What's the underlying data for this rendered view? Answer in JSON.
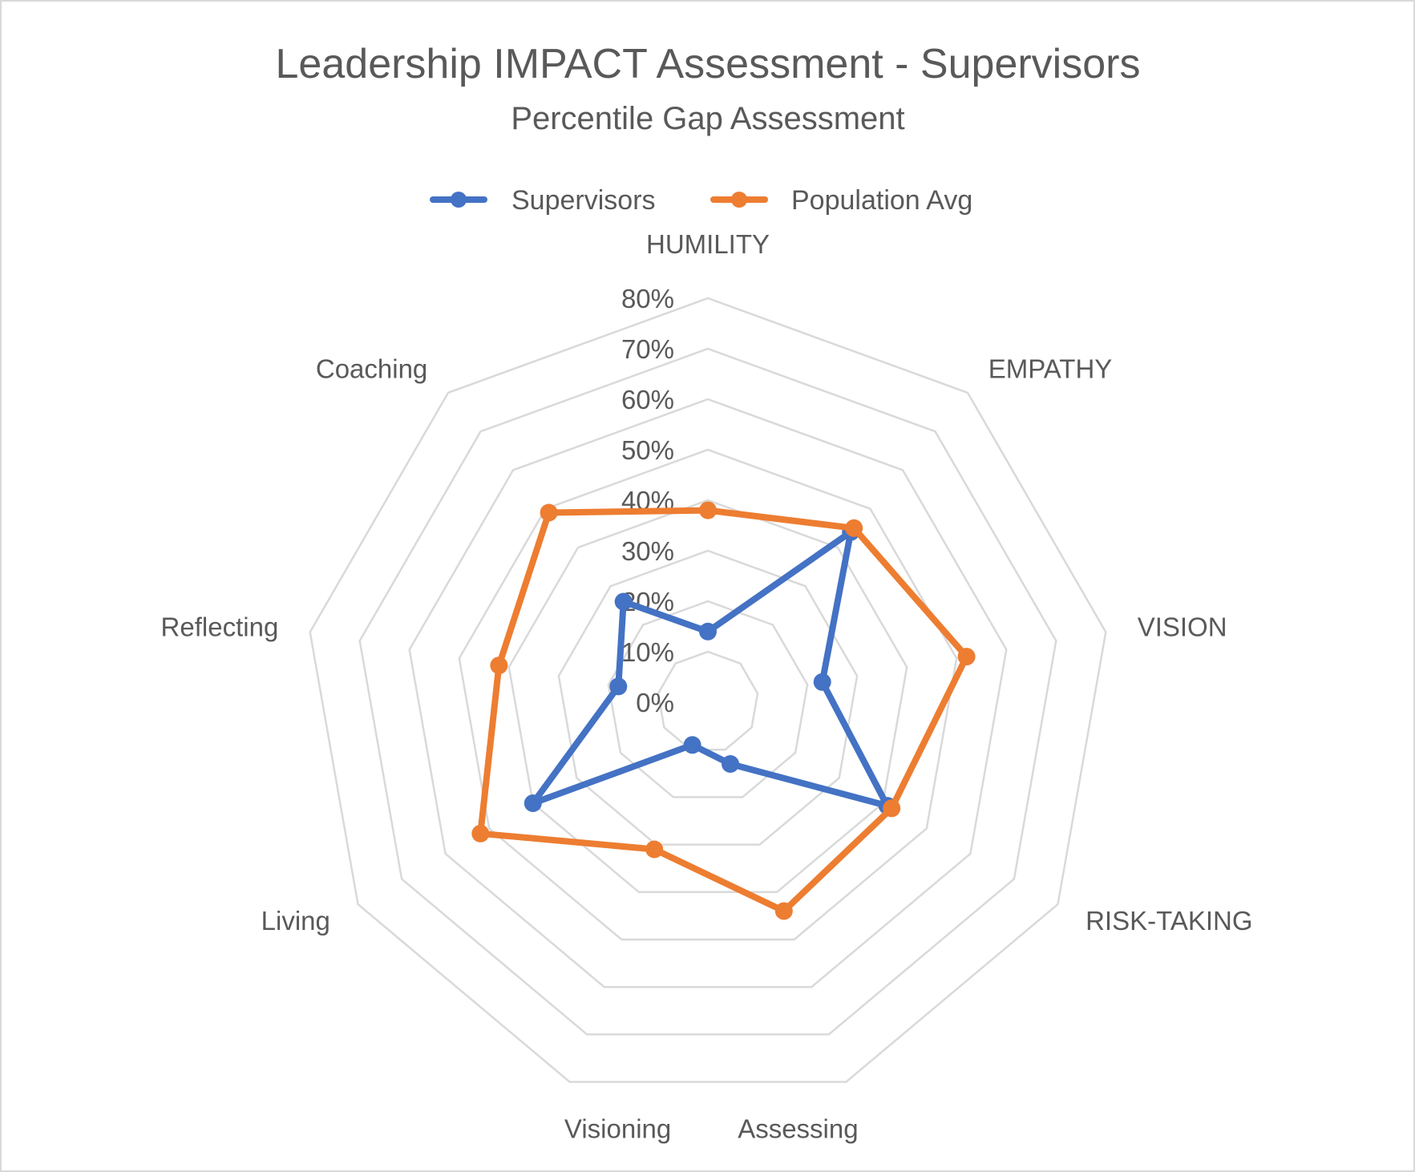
{
  "chart_data": {
    "type": "radar",
    "title": "Leadership IMPACT Assessment - Supervisors",
    "subtitle": "Percentile Gap Assessment",
    "categories": [
      "HUMILITY",
      "EMPATHY",
      "VISION",
      "RISK-TAKING",
      "Assessing",
      "Visioning",
      "Living",
      "Reflecting",
      "Coaching"
    ],
    "series": [
      {
        "name": "Supervisors",
        "color": "#4472C4",
        "values": [
          14,
          44,
          23,
          41,
          13,
          9,
          40,
          18,
          26
        ]
      },
      {
        "name": "Population Avg",
        "color": "#ED7D31",
        "values": [
          38,
          45,
          52,
          42,
          44,
          31,
          52,
          42,
          49
        ]
      }
    ],
    "rlim": [
      0,
      80
    ],
    "ticks": [
      "0%",
      "10%",
      "20%",
      "30%",
      "40%",
      "50%",
      "60%",
      "70%",
      "80%"
    ],
    "grid": true,
    "legend_position": "top"
  },
  "legend": [
    {
      "label": "Supervisors",
      "color": "#4472C4"
    },
    {
      "label": "Population Avg",
      "color": "#ED7D31"
    }
  ]
}
